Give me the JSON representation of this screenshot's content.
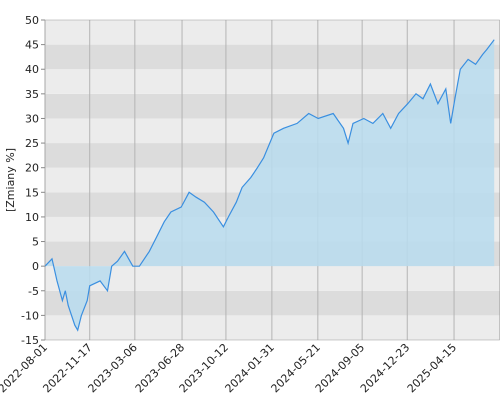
{
  "chart_data": {
    "type": "area",
    "y_label": "[Zmiany %]",
    "x": [
      "2022-08-01",
      "2022-08-18",
      "2022-08-30",
      "2022-09-12",
      "2022-09-19",
      "2022-09-26",
      "2022-10-12",
      "2022-10-19",
      "2022-10-28",
      "2022-11-11",
      "2022-11-17",
      "2022-12-12",
      "2022-12-30",
      "2023-01-09",
      "2023-01-23",
      "2023-02-09",
      "2023-03-01",
      "2023-03-17",
      "2023-04-10",
      "2023-04-28",
      "2023-05-16",
      "2023-06-01",
      "2023-06-26",
      "2023-07-15",
      "2023-08-01",
      "2023-08-21",
      "2023-09-12",
      "2023-10-06",
      "2023-10-18",
      "2023-11-06",
      "2023-11-20",
      "2023-12-11",
      "2023-12-27",
      "2024-01-11",
      "2024-02-05",
      "2024-02-28",
      "2024-04-01",
      "2024-04-29",
      "2024-05-22",
      "2024-06-27",
      "2024-07-22",
      "2024-08-02",
      "2024-08-14",
      "2024-09-09",
      "2024-10-01",
      "2024-10-25",
      "2024-11-13",
      "2024-12-02",
      "2024-12-24",
      "2025-01-13",
      "2025-01-30",
      "2025-02-17",
      "2025-03-07",
      "2025-03-26",
      "2025-04-07",
      "2025-04-17",
      "2025-04-30",
      "2025-05-19",
      "2025-06-06",
      "2025-06-23",
      "2025-07-03",
      "2025-07-21"
    ],
    "series": [
      {
        "color": "#3a8fe0",
        "fill": "#b8dcee",
        "values": [
          0,
          1.5,
          -3,
          -7,
          -5,
          -8,
          -12,
          -13,
          -10,
          -7,
          -4,
          -3,
          -5,
          0,
          1,
          3,
          0,
          0,
          3,
          6,
          9,
          11,
          12,
          15,
          14,
          13,
          11,
          8,
          10,
          13,
          16,
          18,
          20,
          22,
          27,
          28,
          29,
          31,
          30,
          31,
          28,
          25,
          29,
          30,
          29,
          31,
          28,
          31,
          33,
          35,
          34,
          37,
          33,
          36,
          29,
          34,
          40,
          42,
          41,
          43,
          44,
          46
        ]
      }
    ],
    "xlim": [
      "2022-08-01",
      "2025-08-04"
    ],
    "xticks": [
      "2022-08-01",
      "2022-11-17",
      "2023-03-06",
      "2023-06-28",
      "2023-10-12",
      "2024-01-31",
      "2024-05-21",
      "2024-09-05",
      "2024-12-23",
      "2025-04-15"
    ],
    "ylim": [
      -15,
      50
    ],
    "yticks": [
      -15,
      -10,
      -5,
      0,
      5,
      10,
      15,
      20,
      25,
      30,
      35,
      40,
      45,
      50
    ],
    "grid": true
  }
}
